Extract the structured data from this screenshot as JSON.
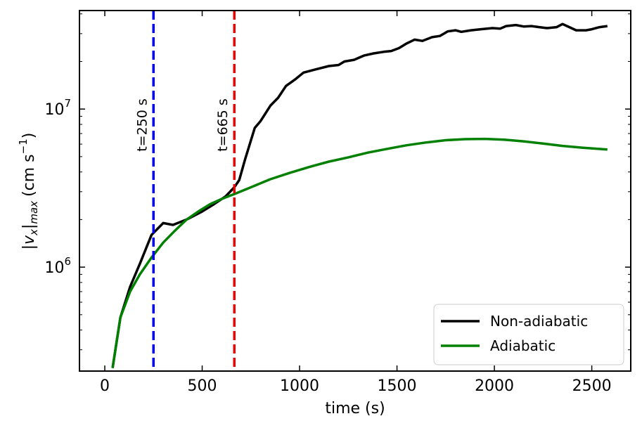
{
  "chart_data": {
    "type": "line",
    "xlabel": "time (s)",
    "ylabel": "|v_x|_max (cm s^-1)",
    "ylabel_parts": {
      "v": "v",
      "x": "x",
      "max": "max",
      "unit": "(cm s",
      "exp": "−1",
      "close": ")"
    },
    "xlim": [
      -130,
      2700
    ],
    "ylim": [
      220000,
      42000000
    ],
    "yscale": "log",
    "xticks": [
      0,
      500,
      1000,
      1500,
      2000,
      2500
    ],
    "xtick_labels": [
      "0",
      "500",
      "1000",
      "1500",
      "2000",
      "2500"
    ],
    "yticks_major": [
      1000000,
      10000000
    ],
    "ytick_labels": [
      {
        "base": "10",
        "exp": "6"
      },
      {
        "base": "10",
        "exp": "7"
      }
    ],
    "legend_position": "lower-right",
    "grid": false,
    "series": [
      {
        "name": "Non-adiabatic",
        "color": "#000000",
        "points": [
          [
            40,
            230000
          ],
          [
            80,
            480000
          ],
          [
            130,
            750000
          ],
          [
            180,
            1050000
          ],
          [
            240,
            1600000
          ],
          [
            300,
            1900000
          ],
          [
            350,
            1850000
          ],
          [
            420,
            2000000
          ],
          [
            500,
            2250000
          ],
          [
            560,
            2500000
          ],
          [
            620,
            2800000
          ],
          [
            665,
            3200000
          ],
          [
            690,
            3550000
          ],
          [
            720,
            4800000
          ],
          [
            770,
            7600000
          ],
          [
            800,
            8400000
          ],
          [
            850,
            10500000
          ],
          [
            890,
            11800000
          ],
          [
            930,
            14000000
          ],
          [
            980,
            15500000
          ],
          [
            1020,
            17000000
          ],
          [
            1080,
            17800000
          ],
          [
            1150,
            18700000
          ],
          [
            1200,
            19000000
          ],
          [
            1230,
            20000000
          ],
          [
            1280,
            20500000
          ],
          [
            1330,
            21800000
          ],
          [
            1380,
            22500000
          ],
          [
            1430,
            23000000
          ],
          [
            1470,
            23300000
          ],
          [
            1510,
            24300000
          ],
          [
            1550,
            26000000
          ],
          [
            1590,
            27500000
          ],
          [
            1630,
            27000000
          ],
          [
            1680,
            28500000
          ],
          [
            1720,
            29000000
          ],
          [
            1760,
            31000000
          ],
          [
            1800,
            31500000
          ],
          [
            1830,
            30800000
          ],
          [
            1880,
            31500000
          ],
          [
            1930,
            32000000
          ],
          [
            1990,
            32500000
          ],
          [
            2030,
            32300000
          ],
          [
            2060,
            33500000
          ],
          [
            2110,
            34000000
          ],
          [
            2150,
            33300000
          ],
          [
            2190,
            33500000
          ],
          [
            2230,
            33000000
          ],
          [
            2270,
            32500000
          ],
          [
            2320,
            33000000
          ],
          [
            2350,
            34500000
          ],
          [
            2380,
            33200000
          ],
          [
            2420,
            31500000
          ],
          [
            2470,
            31500000
          ],
          [
            2500,
            32000000
          ],
          [
            2540,
            33000000
          ],
          [
            2580,
            33500000
          ]
        ]
      },
      {
        "name": "Adiabatic",
        "color": "#008000",
        "points": [
          [
            40,
            230000
          ],
          [
            80,
            480000
          ],
          [
            130,
            700000
          ],
          [
            180,
            900000
          ],
          [
            240,
            1150000
          ],
          [
            300,
            1430000
          ],
          [
            360,
            1700000
          ],
          [
            420,
            2000000
          ],
          [
            480,
            2250000
          ],
          [
            540,
            2500000
          ],
          [
            600,
            2700000
          ],
          [
            665,
            2900000
          ],
          [
            750,
            3200000
          ],
          [
            850,
            3600000
          ],
          [
            950,
            3950000
          ],
          [
            1050,
            4300000
          ],
          [
            1150,
            4650000
          ],
          [
            1250,
            4950000
          ],
          [
            1350,
            5300000
          ],
          [
            1450,
            5600000
          ],
          [
            1550,
            5900000
          ],
          [
            1650,
            6150000
          ],
          [
            1750,
            6350000
          ],
          [
            1850,
            6450000
          ],
          [
            1950,
            6480000
          ],
          [
            2050,
            6400000
          ],
          [
            2150,
            6250000
          ],
          [
            2250,
            6050000
          ],
          [
            2350,
            5850000
          ],
          [
            2450,
            5700000
          ],
          [
            2580,
            5550000
          ]
        ]
      }
    ],
    "vlines": [
      {
        "x": 250,
        "color": "#0000ee",
        "label": "t=250 s"
      },
      {
        "x": 665,
        "color": "#ee0000",
        "label": "t=665 s"
      }
    ]
  }
}
